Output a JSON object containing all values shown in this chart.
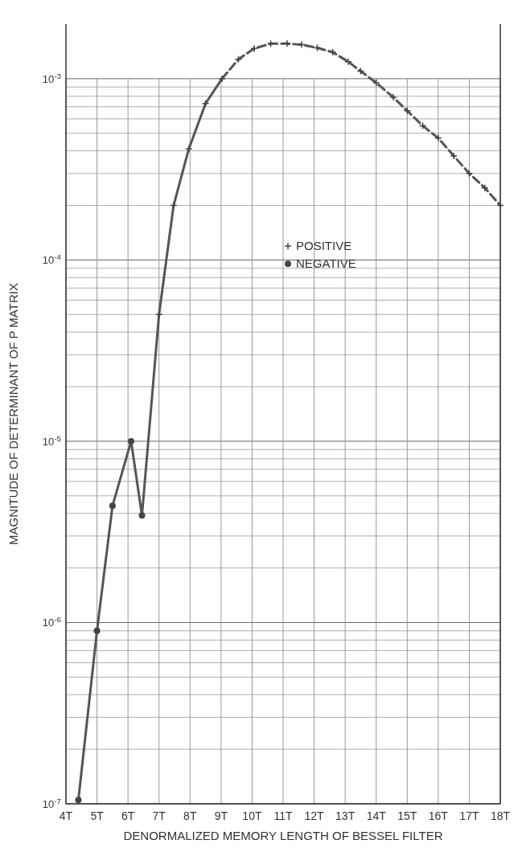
{
  "chart_data": {
    "type": "line",
    "xlabel": "DENORMALIZED  MEMORY LENGTH OF BESSEL FILTER",
    "ylabel": "MAGNITUDE OF DETERMINANT OF P MATRIX",
    "log": "y",
    "grid": true,
    "legend": "top right",
    "xlim": [
      4,
      18
    ],
    "xticks": [
      {
        "value": 4,
        "label": "4T"
      },
      {
        "value": 5,
        "label": "5T"
      },
      {
        "value": 6,
        "label": "6T"
      },
      {
        "value": 7,
        "label": "7T"
      },
      {
        "value": 8,
        "label": "8T"
      },
      {
        "value": 9,
        "label": "9T"
      },
      {
        "value": 10,
        "label": "10T"
      },
      {
        "value": 11,
        "label": "11T"
      },
      {
        "value": 12,
        "label": "12T"
      },
      {
        "value": 13,
        "label": "13T"
      },
      {
        "value": 14,
        "label": "14T"
      },
      {
        "value": 15,
        "label": "15T"
      },
      {
        "value": 16,
        "label": "16T"
      },
      {
        "value": 17,
        "label": "17T"
      },
      {
        "value": 18,
        "label": "18T"
      }
    ],
    "ylim": [
      1e-07,
      0.002
    ],
    "yticks": [
      {
        "value": 1e-07,
        "label": "10$^{-7}$"
      },
      {
        "value": 1e-06,
        "label": "10$^{-6}$"
      },
      {
        "value": 1e-05,
        "label": "10$^{-5}$"
      },
      {
        "value": 0.0001,
        "label": "10$^{-4}$"
      },
      {
        "value": 0.001,
        "label": "10$^{-3}$"
      }
    ],
    "series": [
      {
        "color": "#555555",
        "line_style": "solid",
        "marker": "none",
        "x": [
          4.4,
          5.0,
          5.5,
          6.1,
          6.45,
          7.0,
          7.47,
          7.96,
          8.5,
          9.03
        ],
        "values": [
          1.05e-07,
          9e-07,
          4.4e-06,
          1e-05,
          3.9e-06,
          5e-05,
          0.0002,
          0.00041,
          0.00073,
          0.001
        ]
      },
      {
        "color": "#555555",
        "line_style": "dashed",
        "marker": "none",
        "x": [
          9.03,
          9.56,
          10.07,
          10.6,
          11.13,
          11.6,
          12.1,
          12.6,
          13.1,
          13.5,
          14.0,
          14.55,
          15.0,
          15.5,
          16.0,
          16.5,
          17.0,
          17.5,
          18.0
        ],
        "values": [
          0.001,
          0.00128,
          0.00147,
          0.00156,
          0.00156,
          0.00154,
          0.00148,
          0.0014,
          0.00124,
          0.0011,
          0.00095,
          0.00079,
          0.000665,
          0.00055,
          0.00047,
          0.000375,
          0.0003,
          0.00025,
          0.0002
        ]
      },
      {
        "type": "scatter",
        "name": "POSITIVE",
        "color": "#444444",
        "marker": "cross",
        "x": [
          7.0,
          7.47,
          7.96,
          8.5,
          9.03,
          9.56,
          10.07,
          10.6,
          11.13,
          11.6,
          12.1,
          12.6,
          13.1,
          13.5,
          14.0,
          14.55,
          15.0,
          15.5,
          16.0,
          16.5,
          17.0,
          17.5,
          18.0
        ],
        "values": [
          5e-05,
          0.0002,
          0.00041,
          0.00073,
          0.001,
          0.00128,
          0.00147,
          0.00156,
          0.00156,
          0.00154,
          0.00148,
          0.0014,
          0.00124,
          0.0011,
          0.00095,
          0.00079,
          0.000665,
          0.00055,
          0.00047,
          0.000375,
          0.0003,
          0.00025,
          0.0002
        ]
      },
      {
        "type": "scatter",
        "name": "NEGATIVE",
        "color": "#444444",
        "marker": "circle",
        "x": [
          4.4,
          5.0,
          5.5,
          6.1,
          6.45
        ],
        "values": [
          1.05e-07,
          9e-07,
          4.4e-06,
          1e-05,
          3.9e-06
        ]
      }
    ]
  }
}
